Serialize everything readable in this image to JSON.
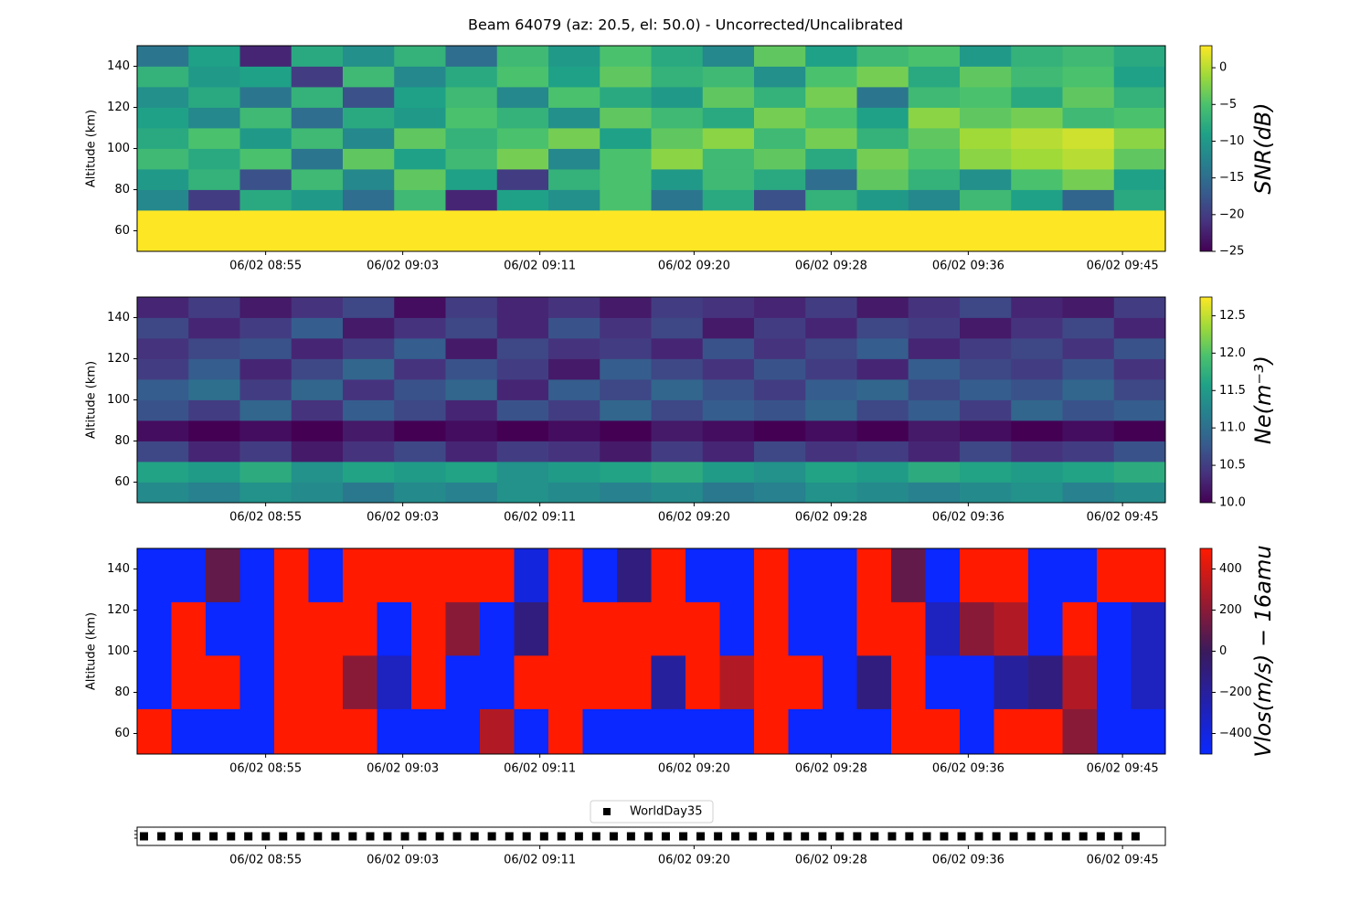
{
  "chart_data": [
    {
      "type": "heatmap",
      "title": "Beam 64079 (az: 20.5, el: 50.0) - Uncorrected/Uncalibrated",
      "y_label": "Altitude (km)",
      "colorbar_label": "SNR(dB)",
      "colormap": [
        "#440154",
        "#46327e",
        "#365c8d",
        "#277f8e",
        "#1fa187",
        "#4ac16d",
        "#a0da39",
        "#fde725"
      ],
      "x": [
        527.5,
        530.5,
        533.5,
        536.5,
        539.5,
        542.5,
        545.5,
        548.5,
        551.5,
        554.5,
        557.5,
        560.5,
        563.5,
        566.5,
        569.5,
        572.5,
        575.5,
        578.5,
        581.5,
        584.5,
        587.5
      ],
      "y": [
        50,
        60,
        70,
        80,
        90,
        100,
        110,
        120,
        130,
        140,
        150
      ],
      "z": [
        [
          3,
          3,
          3,
          3,
          3,
          3,
          3,
          3,
          3,
          3,
          3,
          3,
          3,
          3,
          3,
          3,
          3,
          3,
          3,
          3
        ],
        [
          3,
          3,
          3,
          3,
          3,
          3,
          3,
          3,
          3,
          3,
          3,
          3,
          3,
          3,
          3,
          3,
          3,
          3,
          3,
          3
        ],
        [
          -12,
          -20,
          -8,
          -10,
          -15,
          -6,
          -22,
          -9,
          -11,
          -5,
          -14,
          -8,
          -18,
          -7,
          -10,
          -12,
          -6,
          -9,
          -16,
          -8
        ],
        [
          -10,
          -7,
          -18,
          -6,
          -12,
          -4,
          -9,
          -20,
          -7,
          -5,
          -10,
          -6,
          -8,
          -15,
          -4,
          -7,
          -11,
          -5,
          -3,
          -9
        ],
        [
          -6,
          -8,
          -5,
          -14,
          -4,
          -9,
          -6,
          -3,
          -12,
          -5,
          -2,
          -6,
          -4,
          -8,
          -3,
          -5,
          -2,
          -1,
          0,
          -4
        ],
        [
          -8,
          -5,
          -10,
          -6,
          -12,
          -4,
          -7,
          -5,
          -3,
          -9,
          -4,
          -2,
          -6,
          -3,
          -7,
          -4,
          -1,
          0,
          1,
          -2
        ],
        [
          -9,
          -12,
          -6,
          -15,
          -8,
          -10,
          -5,
          -7,
          -11,
          -4,
          -6,
          -8,
          -3,
          -5,
          -9,
          -2,
          -4,
          -3,
          -6,
          -5
        ],
        [
          -11,
          -8,
          -14,
          -7,
          -18,
          -9,
          -6,
          -12,
          -5,
          -8,
          -10,
          -4,
          -7,
          -3,
          -14,
          -6,
          -5,
          -8,
          -4,
          -7
        ],
        [
          -7,
          -10,
          -9,
          -20,
          -6,
          -12,
          -8,
          -5,
          -9,
          -4,
          -7,
          -6,
          -11,
          -5,
          -3,
          -8,
          -4,
          -6,
          -5,
          -9
        ],
        [
          -14,
          -9,
          -22,
          -8,
          -11,
          -7,
          -15,
          -6,
          -10,
          -5,
          -8,
          -12,
          -4,
          -9,
          -6,
          -5,
          -10,
          -7,
          -6,
          -8
        ]
      ],
      "zlim": [
        -25,
        3
      ],
      "zticks": [
        {
          "value": -25,
          "label": "−25"
        },
        {
          "value": -20,
          "label": "−20"
        },
        {
          "value": -15,
          "label": "−15"
        },
        {
          "value": -10,
          "label": "−10"
        },
        {
          "value": -5,
          "label": "−5"
        },
        0
      ],
      "xlim": [
        527.5,
        587.5
      ],
      "xticks": [
        {
          "value": 535,
          "label": "06/02 08:55"
        },
        {
          "value": 543,
          "label": "06/02 09:03"
        },
        {
          "value": 551,
          "label": "06/02 09:11"
        },
        {
          "value": 560,
          "label": "06/02 09:20"
        },
        {
          "value": 568,
          "label": "06/02 09:28"
        },
        {
          "value": 576,
          "label": "06/02 09:36"
        },
        {
          "value": 585,
          "label": "06/02 09:45"
        }
      ],
      "ylim": [
        50,
        150
      ],
      "yticks": [
        60,
        80,
        100,
        120,
        140
      ]
    },
    {
      "type": "heatmap",
      "y_label": "Altitude (km)",
      "colorbar_label": "Ne(m⁻³)",
      "colormap": [
        "#440154",
        "#46327e",
        "#365c8d",
        "#277f8e",
        "#1fa187",
        "#4ac16d",
        "#a0da39",
        "#fde725"
      ],
      "x": [
        527.5,
        530.5,
        533.5,
        536.5,
        539.5,
        542.5,
        545.5,
        548.5,
        551.5,
        554.5,
        557.5,
        560.5,
        563.5,
        566.5,
        569.5,
        572.5,
        575.5,
        578.5,
        581.5,
        584.5,
        587.5
      ],
      "y": [
        50,
        60,
        70,
        80,
        90,
        100,
        110,
        120,
        130,
        140,
        150
      ],
      "z": [
        [
          11.3,
          11.2,
          11.4,
          11.3,
          11.1,
          11.3,
          11.2,
          11.4,
          11.3,
          11.2,
          11.3,
          11.1,
          11.2,
          11.4,
          11.3,
          11.2,
          11.3,
          11.4,
          11.2,
          11.3
        ],
        [
          11.6,
          11.5,
          11.7,
          11.4,
          11.6,
          11.5,
          11.6,
          11.4,
          11.5,
          11.6,
          11.7,
          11.5,
          11.4,
          11.6,
          11.5,
          11.7,
          11.6,
          11.5,
          11.6,
          11.7
        ],
        [
          10.6,
          10.3,
          10.5,
          10.2,
          10.4,
          10.6,
          10.3,
          10.5,
          10.4,
          10.2,
          10.5,
          10.3,
          10.6,
          10.4,
          10.5,
          10.3,
          10.6,
          10.4,
          10.5,
          10.7
        ],
        [
          10.1,
          10.0,
          10.1,
          10.0,
          10.2,
          10.0,
          10.1,
          10.0,
          10.1,
          10.0,
          10.2,
          10.1,
          10.0,
          10.1,
          10.0,
          10.2,
          10.1,
          10.0,
          10.1,
          10.0
        ],
        [
          10.7,
          10.5,
          10.9,
          10.4,
          10.8,
          10.6,
          10.3,
          10.7,
          10.5,
          10.9,
          10.6,
          10.8,
          10.7,
          10.9,
          10.6,
          10.8,
          10.5,
          10.9,
          10.7,
          10.8
        ],
        [
          10.8,
          11.0,
          10.5,
          10.9,
          10.4,
          10.7,
          10.9,
          10.3,
          10.8,
          10.6,
          10.9,
          10.7,
          10.5,
          10.8,
          10.9,
          10.6,
          10.8,
          10.7,
          10.9,
          10.6
        ],
        [
          10.5,
          10.8,
          10.3,
          10.6,
          10.9,
          10.4,
          10.7,
          10.5,
          10.2,
          10.8,
          10.6,
          10.4,
          10.7,
          10.5,
          10.3,
          10.8,
          10.6,
          10.5,
          10.7,
          10.4
        ],
        [
          10.4,
          10.6,
          10.7,
          10.3,
          10.5,
          10.8,
          10.2,
          10.6,
          10.4,
          10.5,
          10.3,
          10.7,
          10.4,
          10.6,
          10.8,
          10.3,
          10.5,
          10.6,
          10.4,
          10.7
        ],
        [
          10.6,
          10.3,
          10.5,
          10.8,
          10.2,
          10.4,
          10.6,
          10.3,
          10.7,
          10.4,
          10.6,
          10.2,
          10.5,
          10.3,
          10.6,
          10.5,
          10.2,
          10.4,
          10.6,
          10.3
        ],
        [
          10.3,
          10.5,
          10.2,
          10.4,
          10.6,
          10.1,
          10.5,
          10.3,
          10.4,
          10.2,
          10.5,
          10.4,
          10.3,
          10.5,
          10.2,
          10.4,
          10.6,
          10.3,
          10.2,
          10.5
        ]
      ],
      "zlim": [
        10,
        12.75
      ],
      "zticks": [
        {
          "value": 10,
          "label": "10.0"
        },
        10.5,
        {
          "value": 11,
          "label": "11.0"
        },
        11.5,
        {
          "value": 12,
          "label": "12.0"
        },
        12.5
      ],
      "xlim": [
        527.5,
        587.5
      ],
      "xticks": [
        {
          "value": 535,
          "label": "06/02 08:55"
        },
        {
          "value": 543,
          "label": "06/02 09:03"
        },
        {
          "value": 551,
          "label": "06/02 09:11"
        },
        {
          "value": 560,
          "label": "06/02 09:20"
        },
        {
          "value": 568,
          "label": "06/02 09:28"
        },
        {
          "value": 576,
          "label": "06/02 09:36"
        },
        {
          "value": 585,
          "label": "06/02 09:45"
        }
      ],
      "ylim": [
        50,
        150
      ],
      "yticks": [
        60,
        80,
        100,
        120,
        140
      ]
    },
    {
      "type": "heatmap",
      "y_label": "Altitude (km)",
      "colorbar_label": "Vlos(m/s) − 16amu",
      "colormap": [
        "#0a28ff",
        "#3b1a5c",
        "#ff1a00"
      ],
      "x": [
        527.5,
        529.5,
        531.5,
        533.5,
        535.5,
        537.5,
        539.5,
        541.5,
        543.5,
        545.5,
        547.5,
        549.5,
        551.5,
        553.5,
        555.5,
        557.5,
        559.5,
        561.5,
        563.5,
        565.5,
        567.5,
        569.5,
        571.5,
        573.5,
        575.5,
        577.5,
        579.5,
        581.5,
        583.5,
        585.5,
        587.5
      ],
      "y": [
        50,
        72,
        98,
        124,
        150
      ],
      "z": [
        [
          500,
          -500,
          -500,
          -500,
          500,
          500,
          500,
          -500,
          -500,
          -500,
          300,
          -500,
          500,
          -500,
          -500,
          -500,
          -500,
          -500,
          500,
          -500,
          -500,
          -500,
          500,
          500,
          -500,
          500,
          500,
          200,
          -500,
          -500
        ],
        [
          -500,
          500,
          500,
          -500,
          500,
          500,
          200,
          -300,
          500,
          -500,
          -500,
          500,
          500,
          500,
          500,
          -200,
          500,
          300,
          500,
          500,
          -500,
          -100,
          500,
          -500,
          -500,
          -200,
          -100,
          300,
          -500,
          -300
        ],
        [
          -500,
          500,
          -500,
          -500,
          500,
          500,
          500,
          -500,
          500,
          200,
          -500,
          -100,
          500,
          500,
          500,
          500,
          500,
          -500,
          500,
          -500,
          -500,
          500,
          500,
          -300,
          200,
          300,
          -500,
          500,
          -500,
          -300
        ],
        [
          -500,
          -500,
          100,
          -500,
          500,
          -500,
          500,
          500,
          500,
          500,
          500,
          -400,
          500,
          -500,
          -100,
          500,
          -500,
          -500,
          500,
          -500,
          -500,
          500,
          100,
          -500,
          500,
          500,
          -500,
          -500,
          500,
          500
        ]
      ],
      "zlim": [
        -500,
        500
      ],
      "zticks": [
        {
          "value": -400,
          "label": "−400"
        },
        {
          "value": -200,
          "label": "−200"
        },
        0,
        200,
        400
      ],
      "xlim": [
        527.5,
        587.5
      ],
      "xticks": [
        {
          "value": 535,
          "label": "06/02 08:55"
        },
        {
          "value": 543,
          "label": "06/02 09:03"
        },
        {
          "value": 551,
          "label": "06/02 09:11"
        },
        {
          "value": 560,
          "label": "06/02 09:20"
        },
        {
          "value": 568,
          "label": "06/02 09:28"
        },
        {
          "value": 576,
          "label": "06/02 09:36"
        },
        {
          "value": 585,
          "label": "06/02 09:45"
        }
      ],
      "ylim": [
        50,
        150
      ],
      "yticks": [
        60,
        80,
        100,
        120,
        140
      ]
    },
    {
      "type": "scatter",
      "legend": "upper center",
      "series": [
        {
          "name": "WorldDay35",
          "color": "#000000",
          "x": [
            527.9,
            528.92,
            529.93,
            530.95,
            531.96,
            532.98,
            533.99,
            535.01,
            536.02,
            537.04,
            538.05,
            539.07,
            540.08,
            541.1,
            542.11,
            543.13,
            544.14,
            545.16,
            546.17,
            547.19,
            548.2,
            549.22,
            550.23,
            551.25,
            552.26,
            553.28,
            554.29,
            555.31,
            556.32,
            557.34,
            558.35,
            559.37,
            560.38,
            561.4,
            562.41,
            563.43,
            564.44,
            565.46,
            566.47,
            567.49,
            568.5,
            569.52,
            570.53,
            571.55,
            572.56,
            573.58,
            574.59,
            575.61,
            576.62,
            577.64,
            578.65,
            579.67,
            580.68,
            581.7,
            582.71,
            583.73,
            584.74,
            585.76
          ],
          "values": [
            1,
            1,
            1,
            1,
            1,
            1,
            1,
            1,
            1,
            1,
            1,
            1,
            1,
            1,
            1,
            1,
            1,
            1,
            1,
            1,
            1,
            1,
            1,
            1,
            1,
            1,
            1,
            1,
            1,
            1,
            1,
            1,
            1,
            1,
            1,
            1,
            1,
            1,
            1,
            1,
            1,
            1,
            1,
            1,
            1,
            1,
            1,
            1,
            1,
            1,
            1,
            1,
            1,
            1,
            1,
            1,
            1,
            1
          ]
        }
      ],
      "xlim": [
        527.5,
        587.5
      ],
      "xticks": [
        {
          "value": 535,
          "label": "06/02 08:55"
        },
        {
          "value": 543,
          "label": "06/02 09:03"
        },
        {
          "value": 551,
          "label": "06/02 09:11"
        },
        {
          "value": 560,
          "label": "06/02 09:20"
        },
        {
          "value": 568,
          "label": "06/02 09:28"
        },
        {
          "value": 576,
          "label": "06/02 09:36"
        },
        {
          "value": 585,
          "label": "06/02 09:45"
        }
      ],
      "ylim": [
        0.9,
        1.1
      ]
    }
  ]
}
